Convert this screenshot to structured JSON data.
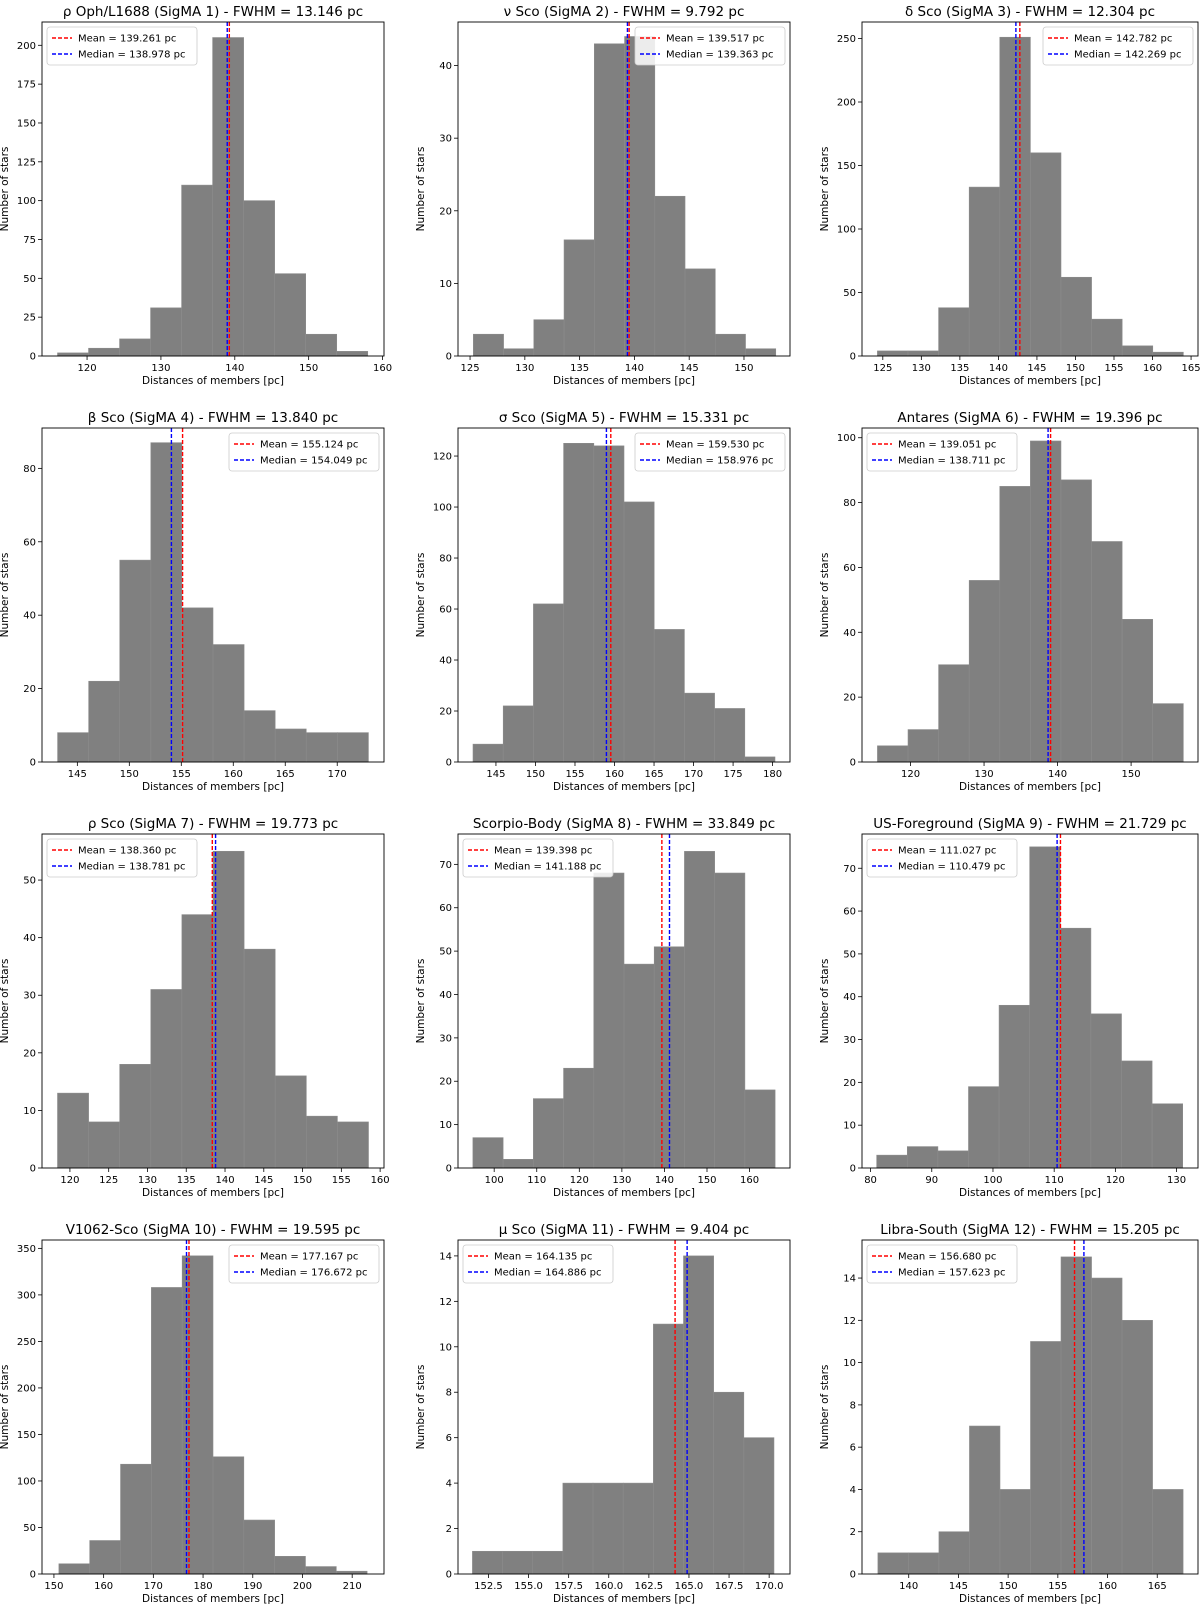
{
  "chart_data": [
    {
      "type": "bar",
      "title": "ρ Oph/L1688 (SigMA 1) - FWHM = 13.146 pc",
      "xlabel": "Distances of members [pc]",
      "ylabel": "Number of stars",
      "xlim": [
        113.9,
        160.2
      ],
      "ylim": [
        0,
        215
      ],
      "xticks": [
        120,
        130,
        140,
        150,
        160
      ],
      "yticks": [
        0,
        25,
        50,
        75,
        100,
        125,
        150,
        175,
        200
      ],
      "bin_edges": [
        116,
        120.2,
        124.4,
        128.6,
        132.8,
        137,
        141.2,
        145.4,
        149.6,
        153.8,
        158
      ],
      "counts": [
        2,
        5,
        11,
        31,
        110,
        205,
        100,
        53,
        14,
        3
      ],
      "mean": 139.261,
      "median": 138.978,
      "legend": [
        "Mean = 139.261 pc",
        "Median = 138.978 pc"
      ],
      "legend_position": "top-left",
      "colors": {
        "bars": "#808080",
        "mean": "#ff0000",
        "median": "#0000ff"
      }
    },
    {
      "type": "bar",
      "title": "ν Sco (SigMA 2) - FWHM = 9.792 pc",
      "xlabel": "Distances of members [pc]",
      "ylabel": "Number of stars",
      "xlim": [
        123.9,
        154.2
      ],
      "ylim": [
        0,
        46
      ],
      "xticks": [
        125,
        130,
        135,
        140,
        145,
        150
      ],
      "yticks": [
        0,
        10,
        20,
        30,
        40
      ],
      "bin_edges": [
        125.3,
        128.06,
        130.82,
        133.58,
        136.34,
        139.1,
        141.86,
        144.62,
        147.38,
        150.14,
        152.9
      ],
      "counts": [
        3,
        1,
        5,
        16,
        43,
        44,
        22,
        12,
        3,
        1
      ],
      "mean": 139.517,
      "median": 139.363,
      "legend": [
        "Mean = 139.517 pc",
        "Median = 139.363 pc"
      ],
      "legend_position": "top-right",
      "colors": {
        "bars": "#808080",
        "mean": "#ff0000",
        "median": "#0000ff"
      }
    },
    {
      "type": "bar",
      "title": "δ Sco (SigMA 3) - FWHM = 12.304 pc",
      "xlabel": "Distances of members [pc]",
      "ylabel": "Number of stars",
      "xlim": [
        122.3,
        165.9
      ],
      "ylim": [
        0,
        263
      ],
      "xticks": [
        125,
        130,
        135,
        140,
        145,
        150,
        155,
        160,
        165
      ],
      "yticks": [
        0,
        50,
        100,
        150,
        200,
        250
      ],
      "bin_edges": [
        124.3,
        128.27,
        132.24,
        136.21,
        140.18,
        144.15,
        148.12,
        152.09,
        156.06,
        160.03,
        164
      ],
      "counts": [
        4,
        4,
        38,
        133,
        251,
        160,
        62,
        29,
        8,
        3
      ],
      "mean": 142.782,
      "median": 142.269,
      "legend": [
        "Mean = 142.782 pc",
        "Median = 142.269 pc"
      ],
      "legend_position": "top-right",
      "colors": {
        "bars": "#808080",
        "mean": "#ff0000",
        "median": "#0000ff"
      }
    },
    {
      "type": "bar",
      "title": "β Sco (SigMA 4) - FWHM = 13.840 pc",
      "xlabel": "Distances of members [pc]",
      "ylabel": "Number of stars",
      "xlim": [
        141.6,
        174.5
      ],
      "ylim": [
        0,
        91
      ],
      "xticks": [
        145,
        150,
        155,
        160,
        165,
        170
      ],
      "yticks": [
        0,
        20,
        40,
        60,
        80
      ],
      "bin_edges": [
        143.1,
        146.09,
        149.08,
        152.07,
        155.06,
        158.05,
        161.04,
        164.03,
        167.02,
        170.01,
        173
      ],
      "counts": [
        8,
        22,
        55,
        87,
        42,
        32,
        14,
        9,
        8,
        8
      ],
      "mean": 155.124,
      "median": 154.049,
      "legend": [
        "Mean = 155.124 pc",
        "Median = 154.049 pc"
      ],
      "legend_position": "top-right",
      "colors": {
        "bars": "#808080",
        "mean": "#ff0000",
        "median": "#0000ff"
      }
    },
    {
      "type": "bar",
      "title": "σ Sco (SigMA 5) - FWHM = 15.331 pc",
      "xlabel": "Distances of members [pc]",
      "ylabel": "Number of stars",
      "xlim": [
        140.2,
        182.2
      ],
      "ylim": [
        0,
        131
      ],
      "xticks": [
        145,
        150,
        155,
        160,
        165,
        170,
        175,
        180
      ],
      "yticks": [
        0,
        20,
        40,
        60,
        80,
        100,
        120
      ],
      "bin_edges": [
        142.1,
        145.92,
        149.74,
        153.56,
        157.38,
        161.2,
        165.02,
        168.84,
        172.66,
        176.48,
        180.3
      ],
      "counts": [
        7,
        22,
        62,
        125,
        124,
        102,
        52,
        27,
        21,
        2
      ],
      "mean": 159.53,
      "median": 158.976,
      "legend": [
        "Mean = 159.530 pc",
        "Median = 158.976 pc"
      ],
      "legend_position": "top-right",
      "colors": {
        "bars": "#808080",
        "mean": "#ff0000",
        "median": "#0000ff"
      }
    },
    {
      "type": "bar",
      "title": "Antares (SigMA 6) - FWHM = 19.396 pc",
      "xlabel": "Distances of members [pc]",
      "ylabel": "Number of stars",
      "xlim": [
        113.4,
        159.1
      ],
      "ylim": [
        0,
        103
      ],
      "xticks": [
        120,
        130,
        140,
        150
      ],
      "yticks": [
        0,
        20,
        40,
        60,
        80,
        100
      ],
      "bin_edges": [
        115.5,
        119.66,
        123.82,
        127.98,
        132.14,
        136.3,
        140.46,
        144.62,
        148.78,
        152.94,
        157.1
      ],
      "counts": [
        5,
        10,
        30,
        56,
        85,
        99,
        87,
        68,
        44,
        18
      ],
      "mean": 139.051,
      "median": 138.711,
      "legend": [
        "Mean = 139.051 pc",
        "Median = 138.711 pc"
      ],
      "legend_position": "top-left",
      "colors": {
        "bars": "#808080",
        "mean": "#ff0000",
        "median": "#0000ff"
      }
    },
    {
      "type": "bar",
      "title": "ρ Sco (SigMA 7) - FWHM = 19.773 pc",
      "xlabel": "Distances of members [pc]",
      "ylabel": "Number of stars",
      "xlim": [
        116.4,
        160.5
      ],
      "ylim": [
        0,
        58
      ],
      "xticks": [
        120,
        125,
        130,
        135,
        140,
        145,
        150,
        155,
        160
      ],
      "yticks": [
        0,
        10,
        20,
        30,
        40,
        50
      ],
      "bin_edges": [
        118.4,
        122.41,
        126.42,
        130.43,
        134.44,
        138.45,
        142.46,
        146.47,
        150.48,
        154.49,
        158.5
      ],
      "counts": [
        13,
        8,
        18,
        31,
        44,
        55,
        38,
        16,
        9,
        8
      ],
      "mean": 138.36,
      "median": 138.781,
      "legend": [
        "Mean = 138.360 pc",
        "Median = 138.781 pc"
      ],
      "legend_position": "top-left",
      "colors": {
        "bars": "#808080",
        "mean": "#ff0000",
        "median": "#0000ff"
      }
    },
    {
      "type": "bar",
      "title": "Scorpio-Body (SigMA 8) - FWHM = 33.849 pc",
      "xlabel": "Distances of members [pc]",
      "ylabel": "Number of stars",
      "xlim": [
        91.5,
        169.5
      ],
      "ylim": [
        0,
        77
      ],
      "xticks": [
        100,
        110,
        120,
        130,
        140,
        150,
        160
      ],
      "yticks": [
        0,
        10,
        20,
        30,
        40,
        50,
        60,
        70
      ],
      "bin_edges": [
        95,
        102.1,
        109.2,
        116.3,
        123.4,
        130.5,
        137.6,
        144.7,
        151.8,
        158.9,
        166
      ],
      "counts": [
        7,
        2,
        16,
        23,
        68,
        47,
        51,
        73,
        68,
        18
      ],
      "mean": 139.398,
      "median": 141.188,
      "legend": [
        "Mean = 139.398 pc",
        "Median  = 141.188 pc"
      ],
      "legend_position": "top-left",
      "colors": {
        "bars": "#808080",
        "mean": "#ff0000",
        "median": "#0000ff"
      }
    },
    {
      "type": "bar",
      "title": "US-Foreground (SigMA 9) - FWHM = 21.729 pc",
      "xlabel": "Distances of members [pc]",
      "ylabel": "Number of stars",
      "xlim": [
        78.6,
        133.5
      ],
      "ylim": [
        0,
        78
      ],
      "xticks": [
        80,
        90,
        100,
        110,
        120,
        130
      ],
      "yticks": [
        0,
        10,
        20,
        30,
        40,
        50,
        60,
        70
      ],
      "bin_edges": [
        81,
        86,
        91,
        96,
        101,
        106,
        111,
        116,
        121,
        126,
        131
      ],
      "counts": [
        3,
        5,
        4,
        19,
        38,
        75,
        56,
        36,
        25,
        15
      ],
      "mean": 111.027,
      "median": 110.479,
      "legend": [
        "Mean = 111.027 pc",
        "Median = 110.479 pc"
      ],
      "legend_position": "top-left",
      "colors": {
        "bars": "#808080",
        "mean": "#ff0000",
        "median": "#0000ff"
      }
    },
    {
      "type": "bar",
      "title": "V1062-Sco (SigMA 10) - FWHM = 19.595 pc",
      "xlabel": "Distances of members [pc]",
      "ylabel": "Number of stars",
      "xlim": [
        147.6,
        216.4
      ],
      "ylim": [
        0,
        359
      ],
      "xticks": [
        150,
        160,
        170,
        180,
        190,
        200,
        210
      ],
      "yticks": [
        0,
        50,
        100,
        150,
        200,
        250,
        300,
        350
      ],
      "bin_edges": [
        151,
        157.2,
        163.4,
        169.6,
        175.8,
        182,
        188.2,
        194.4,
        200.6,
        206.8,
        213
      ],
      "counts": [
        11,
        36,
        118,
        308,
        342,
        126,
        58,
        19,
        8,
        3
      ],
      "mean": 177.167,
      "median": 176.672,
      "legend": [
        "Mean = 177.167 pc",
        "Median = 176.672 pc"
      ],
      "legend_position": "top-right",
      "colors": {
        "bars": "#808080",
        "mean": "#ff0000",
        "median": "#0000ff"
      }
    },
    {
      "type": "bar",
      "title": "μ Sco (SigMA 11) - FWHM = 9.404 pc",
      "xlabel": "Distances of members [pc]",
      "ylabel": "Number of stars",
      "xlim": [
        150.6,
        171.3
      ],
      "ylim": [
        0,
        14.7
      ],
      "xticks": [
        152.5,
        155.0,
        157.5,
        160.0,
        162.5,
        165.0,
        167.5,
        170.0
      ],
      "ytick_labels": [
        "0",
        "2",
        "4",
        "6",
        "8",
        "10",
        "12",
        "14"
      ],
      "xtick_labels": [
        "152.5",
        "155.0",
        "157.5",
        "160.0",
        "162.5",
        "165.0",
        "167.5",
        "170.0"
      ],
      "yticks": [
        0,
        2,
        4,
        6,
        8,
        10,
        12,
        14
      ],
      "bin_edges": [
        151.5,
        153.38,
        155.26,
        157.14,
        159.02,
        160.9,
        162.78,
        164.66,
        166.54,
        168.42,
        170.3
      ],
      "counts": [
        1,
        1,
        1,
        4,
        4,
        4,
        11,
        14,
        8,
        6
      ],
      "mean": 164.135,
      "median": 164.886,
      "legend": [
        "Mean = 164.135 pc",
        "Median = 164.886 pc"
      ],
      "legend_position": "top-left",
      "colors": {
        "bars": "#808080",
        "mean": "#ff0000",
        "median": "#0000ff"
      }
    },
    {
      "type": "bar",
      "title": "Libra-South (SigMA 12) - FWHM = 15.205 pc",
      "xlabel": "Distances of members [pc]",
      "ylabel": "Number of stars",
      "xlim": [
        135.3,
        169.1
      ],
      "ylim": [
        0,
        15.8
      ],
      "xticks": [
        140,
        145,
        150,
        155,
        160,
        165
      ],
      "yticks": [
        0,
        2,
        4,
        6,
        8,
        10,
        12,
        14
      ],
      "bin_edges": [
        136.9,
        139.97,
        143.04,
        146.11,
        149.18,
        152.25,
        155.32,
        158.39,
        161.46,
        164.53,
        167.6
      ],
      "counts": [
        1,
        1,
        2,
        7,
        4,
        11,
        15,
        14,
        12,
        4
      ],
      "mean": 156.68,
      "median": 157.623,
      "legend": [
        "Mean = 156.680 pc",
        "Median = 157.623 pc"
      ],
      "legend_position": "top-left",
      "colors": {
        "bars": "#808080",
        "mean": "#ff0000",
        "median": "#0000ff"
      }
    }
  ]
}
